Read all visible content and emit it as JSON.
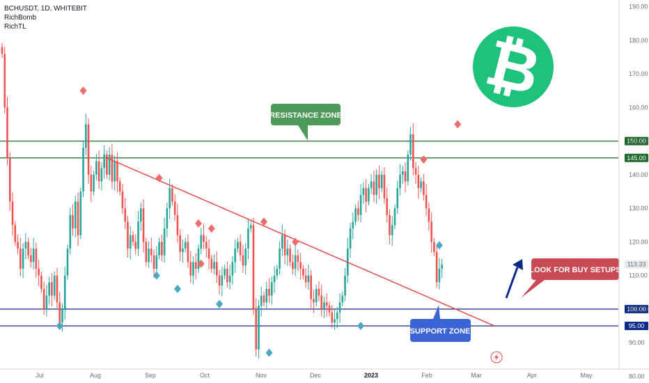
{
  "legend": {
    "symbol": "BCHUSDT, 1D, WHITEBIT",
    "indicator1": "RichBomb",
    "indicator2": "RichTL"
  },
  "colors": {
    "up": "#26a69a",
    "down": "#ef5350",
    "resistance": "#1e6b2c",
    "support": "#0c2a8a",
    "trendline": "#e84a4a",
    "resistance_callout": "#4e9a5a",
    "support_callout": "#3a63d6",
    "buy_callout": "#c94a55",
    "current_price": "#0f3b40",
    "logo_bg": "#1fc27b",
    "sell_marker": "#f06b6b",
    "buy_marker": "#4aa8c4"
  },
  "chart_data": {
    "type": "candlestick",
    "symbol": "BCHUSDT",
    "interval": "1D",
    "exchange": "WHITEBIT",
    "ylim": [
      78,
      192
    ],
    "y_ticks": [
      80,
      90,
      100,
      110,
      120,
      130,
      140,
      150,
      160,
      170,
      180,
      190
    ],
    "y_tick_labels": [
      "80.00",
      "90.00",
      "100.00",
      "110.00",
      "120.00",
      "130.00",
      "140.00",
      "150.00",
      "160.00",
      "170.00",
      "180.00",
      "190.00"
    ],
    "x_tick_labels": [
      "Jul",
      "Aug",
      "Sep",
      "Oct",
      "Nov",
      "Dec",
      "2023",
      "Feb",
      "Mar",
      "Apr",
      "May"
    ],
    "closes": [
      176.0,
      160.0,
      145.0,
      132.0,
      125.0,
      120.0,
      118.0,
      112.0,
      118.0,
      120.0,
      116.0,
      114.0,
      118.0,
      112.0,
      110.0,
      106.0,
      100.0,
      104.0,
      108.0,
      104.0,
      110.0,
      102.0,
      96.0,
      100.0,
      110.0,
      118.0,
      128.0,
      124.0,
      132.0,
      122.0,
      135.0,
      148.0,
      155.0,
      140.0,
      135.0,
      140.0,
      144.0,
      138.0,
      142.0,
      146.0,
      140.0,
      146.0,
      138.0,
      144.0,
      138.0,
      135.0,
      130.0,
      126.0,
      118.0,
      122.0,
      120.0,
      118.0,
      126.0,
      130.0,
      120.0,
      114.0,
      118.0,
      116.0,
      112.0,
      116.0,
      120.0,
      116.0,
      124.0,
      130.0,
      136.0,
      132.0,
      128.0,
      122.0,
      117.0,
      118.0,
      120.0,
      114.0,
      110.0,
      114.0,
      112.0,
      118.0,
      122.0,
      120.0,
      118.0,
      115.0,
      112.0,
      114.0,
      110.0,
      107.0,
      110.0,
      112.0,
      108.0,
      110.0,
      114.0,
      118.0,
      120.0,
      116.0,
      113.0,
      118.0,
      124.0,
      125.0,
      100.0,
      88.0,
      101.0,
      104.0,
      102.0,
      106.0,
      104.0,
      108.0,
      110.0,
      112.0,
      118.0,
      122.0,
      116.0,
      118.0,
      114.0,
      112.0,
      116.0,
      114.0,
      112.0,
      110.0,
      108.0,
      110.0,
      103.0,
      102.0,
      106.0,
      104.0,
      100.0,
      102.0,
      101.0,
      99.0,
      96.0,
      97.0,
      99.0,
      102.0,
      104.0,
      110.0,
      118.0,
      124.0,
      126.0,
      130.0,
      128.0,
      134.0,
      136.0,
      132.0,
      136.0,
      138.0,
      134.0,
      140.0,
      136.0,
      140.0,
      133.0,
      128.0,
      122.0,
      125.0,
      130.0,
      136.0,
      140.0,
      141.0,
      138.0,
      146.0,
      152.0,
      142.0,
      140.0,
      136.0,
      138.0,
      134.0,
      130.0,
      126.0,
      120.0,
      117.0,
      108.0,
      112.0,
      113.3
    ],
    "resistance_levels": [
      145,
      150
    ],
    "support_levels": [
      95,
      100
    ],
    "current_price": 113.33,
    "current_price_label": "113.33",
    "level_labels": [
      "150.00",
      "145.00",
      "100.00",
      "95.00"
    ],
    "trendline": {
      "from": {
        "bar": 40,
        "price": 145
      },
      "to": {
        "bar": 188,
        "price": 95
      }
    },
    "sell_signals": [
      {
        "bar": 31,
        "price": 165
      },
      {
        "bar": 60,
        "price": 139
      },
      {
        "bar": 75,
        "price": 125.5
      },
      {
        "bar": 76,
        "price": 113.5
      },
      {
        "bar": 80,
        "price": 124
      },
      {
        "bar": 100,
        "price": 126
      },
      {
        "bar": 112,
        "price": 120
      },
      {
        "bar": 161,
        "price": 144.5
      },
      {
        "bar": 174,
        "price": 155
      }
    ],
    "buy_signals": [
      {
        "bar": 22,
        "price": 95
      },
      {
        "bar": 59,
        "price": 110
      },
      {
        "bar": 67,
        "price": 106
      },
      {
        "bar": 83,
        "price": 101.5
      },
      {
        "bar": 102,
        "price": 87
      },
      {
        "bar": 137,
        "price": 95
      },
      {
        "bar": 167,
        "price": 119
      }
    ]
  },
  "annotations": {
    "resistance_zone": "RESISTANCE ZONE",
    "support_zone": "SUPPORT ZONE",
    "buy_setups": "LOOK FOR BUY SETUPS"
  }
}
